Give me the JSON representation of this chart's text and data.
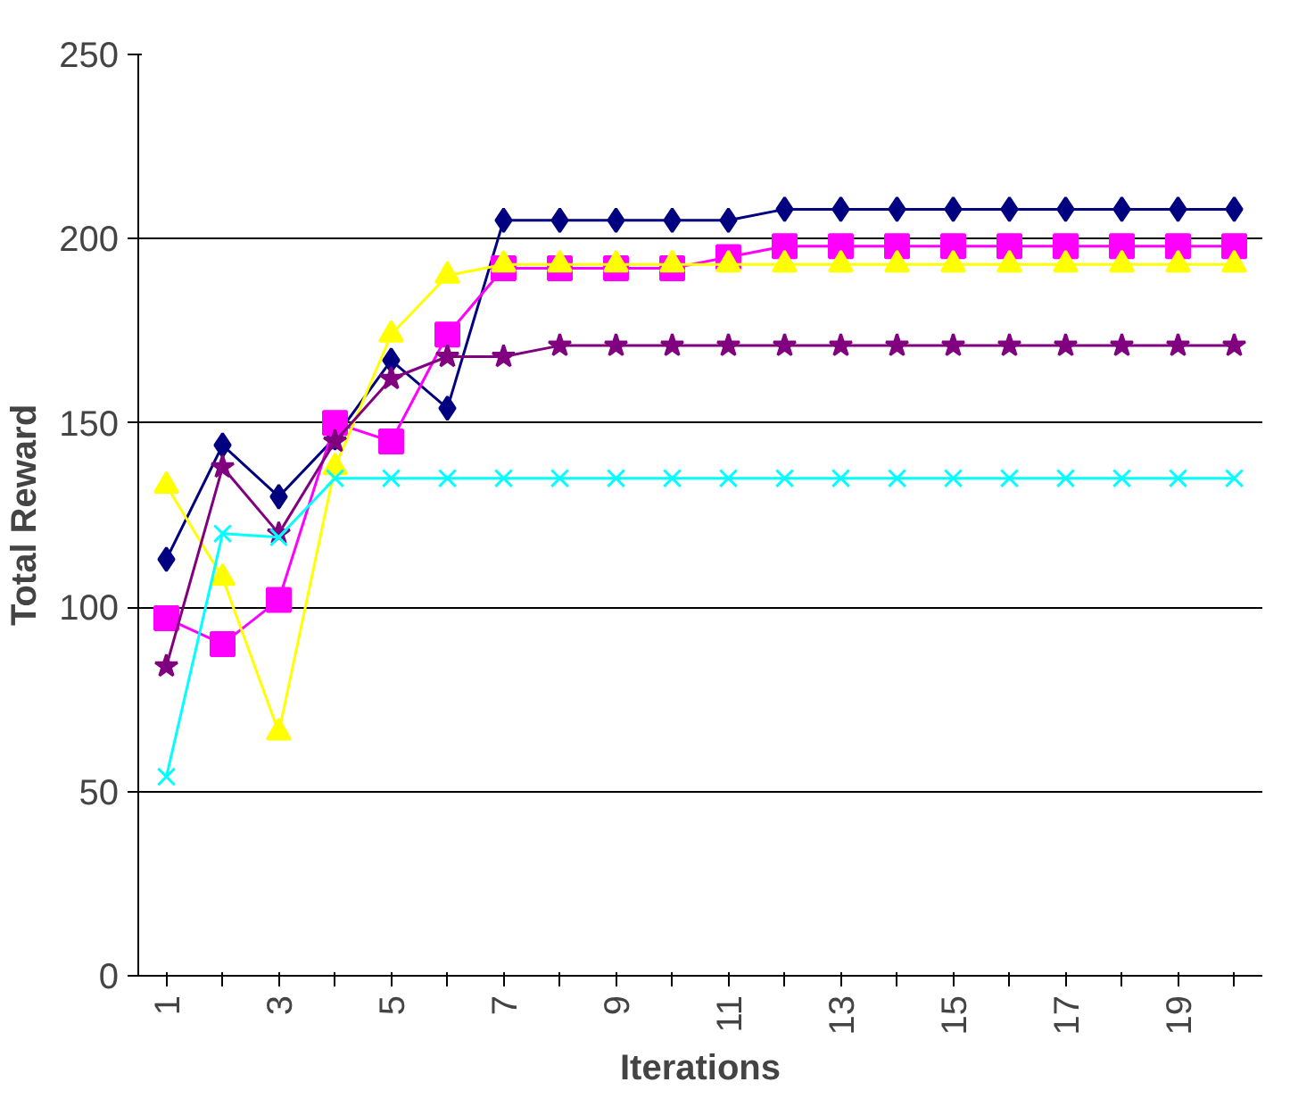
{
  "chart_data": {
    "type": "line",
    "xlabel": "Iterations",
    "ylabel": "Total Reward",
    "categories": [
      "1",
      null,
      "3",
      null,
      "5",
      null,
      "7",
      null,
      "9",
      null,
      "11",
      null,
      "13",
      null,
      "15",
      null,
      "17",
      null,
      "19",
      null
    ],
    "series": [
      {
        "color": "#000080",
        "marker": "diamond",
        "values": [
          113,
          144,
          130,
          146,
          167,
          154,
          205,
          205,
          205,
          205,
          205,
          208,
          208,
          208,
          208,
          208,
          208,
          208,
          208,
          208
        ]
      },
      {
        "color": "#ff00ff",
        "marker": "square",
        "values": [
          97,
          90,
          102,
          150,
          145,
          174,
          192,
          192,
          192,
          192,
          195,
          198,
          198,
          198,
          198,
          198,
          198,
          198,
          198,
          198
        ]
      },
      {
        "color": "#ffff00",
        "marker": "triangle",
        "values": [
          133,
          108,
          66,
          138,
          174,
          190,
          193,
          193,
          193,
          193,
          193,
          193,
          193,
          193,
          193,
          193,
          193,
          193,
          193,
          193
        ]
      },
      {
        "color": "#800080",
        "marker": "star",
        "values": [
          84,
          138,
          120,
          145,
          162,
          168,
          168,
          171,
          171,
          171,
          171,
          171,
          171,
          171,
          171,
          171,
          171,
          171,
          171,
          171
        ]
      },
      {
        "color": "#00ffff",
        "marker": "cross",
        "values": [
          54,
          120,
          119,
          135,
          135,
          135,
          135,
          135,
          135,
          135,
          135,
          135,
          135,
          135,
          135,
          135,
          135,
          135,
          135,
          135
        ]
      }
    ],
    "ylim": [
      0,
      250
    ],
    "yticks": [
      0,
      50,
      100,
      150,
      200,
      250
    ],
    "grid": "y"
  }
}
